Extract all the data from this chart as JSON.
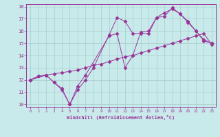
{
  "xlabel": "Windchill (Refroidissement éolien,°C)",
  "xlim": [
    -0.5,
    23.5
  ],
  "ylim": [
    9.8,
    18.2
  ],
  "yticks": [
    10,
    11,
    12,
    13,
    14,
    15,
    16,
    17,
    18
  ],
  "xticks": [
    0,
    1,
    2,
    3,
    4,
    5,
    6,
    7,
    8,
    9,
    10,
    11,
    12,
    13,
    14,
    15,
    16,
    17,
    18,
    19,
    20,
    21,
    22,
    23
  ],
  "background_color": "#c8eaea",
  "line_color": "#993399",
  "grid_color": "#a8cccc",
  "line1_x": [
    0,
    1,
    2,
    3,
    4,
    5,
    6,
    7,
    8,
    9,
    10,
    11,
    12,
    13,
    14,
    15,
    16,
    17,
    18,
    19,
    20,
    21,
    22,
    23
  ],
  "line1_y": [
    12.0,
    12.3,
    12.4,
    12.5,
    12.6,
    12.7,
    12.8,
    13.0,
    13.2,
    13.3,
    13.5,
    13.7,
    13.9,
    14.0,
    14.2,
    14.4,
    14.6,
    14.8,
    15.0,
    15.2,
    15.4,
    15.6,
    15.8,
    14.9
  ],
  "line2_x": [
    0,
    1,
    2,
    3,
    4,
    5,
    6,
    7,
    8,
    10,
    11,
    12,
    13,
    14,
    15,
    16,
    17,
    18,
    19,
    20,
    21,
    22,
    23
  ],
  "line2_y": [
    12.0,
    12.3,
    12.4,
    11.8,
    11.2,
    10.0,
    11.2,
    12.0,
    13.0,
    15.7,
    17.1,
    16.8,
    15.8,
    15.8,
    15.8,
    17.1,
    17.5,
    17.8,
    17.4,
    16.7,
    16.0,
    15.2,
    15.0
  ],
  "line3_x": [
    0,
    2,
    3,
    4,
    5,
    6,
    7,
    10,
    11,
    12,
    13,
    14,
    15,
    16,
    17,
    18,
    19,
    20,
    21,
    22,
    23
  ],
  "line3_y": [
    12.0,
    12.4,
    11.8,
    11.3,
    10.0,
    11.5,
    12.4,
    15.6,
    15.8,
    13.0,
    14.0,
    15.9,
    16.0,
    17.1,
    17.2,
    17.9,
    17.4,
    16.8,
    16.0,
    15.3,
    15.0
  ]
}
